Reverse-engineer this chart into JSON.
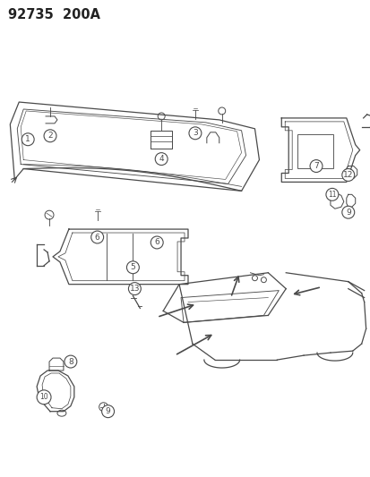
{
  "title": "92735  200A",
  "bg_color": "#ffffff",
  "line_color": "#4a4a4a",
  "fig_width": 4.14,
  "fig_height": 5.33,
  "dpi": 100
}
